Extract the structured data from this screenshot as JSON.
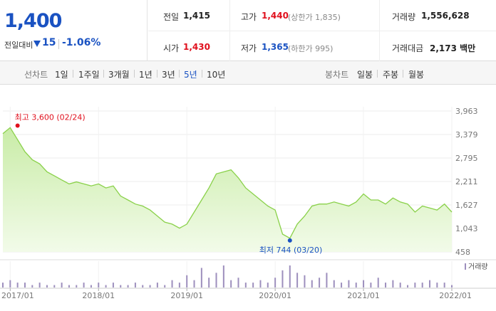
{
  "quote": {
    "price": "1,400",
    "change_label": "전일대비",
    "change_value": "15",
    "change_pct": "-1.06%",
    "prev_close_label": "전일",
    "prev_close": "1,415",
    "open_label": "시가",
    "open": "1,430",
    "high_label": "고가",
    "high": "1,440",
    "upper_limit": "(상한가 1,835)",
    "low_label": "저가",
    "low": "1,365",
    "lower_limit": "(하한가 995)",
    "volume_label": "거래량",
    "volume": "1,556,628",
    "amount_label": "거래대금",
    "amount": "2,173 백만"
  },
  "toolbar": {
    "line_label": "선차트",
    "periods": [
      "1일",
      "1주일",
      "3개월",
      "1년",
      "3년",
      "5년",
      "10년"
    ],
    "active_period": "5년",
    "candle_label": "봉차트",
    "candles": [
      "일봉",
      "주봉",
      "월봉"
    ]
  },
  "colors": {
    "up": "#e0101d",
    "down": "#1a52c2",
    "line": "#8ad14a",
    "area_top": "#c9eca7",
    "area_bottom": "#f2fbe9",
    "volume": "#9d8fbd"
  },
  "chart_data": {
    "type": "area",
    "title": "",
    "ylim": [
      458,
      3963
    ],
    "yticks": [
      "3,963",
      "3,379",
      "2,795",
      "2,211",
      "1,627",
      "1,043",
      "458"
    ],
    "xticks": [
      "2017/01",
      "2018/01",
      "2019/01",
      "2020/01",
      "2021/01",
      "2022/01"
    ],
    "x": [
      "2016/12",
      "2017/01",
      "2017/02",
      "2017/03",
      "2017/04",
      "2017/05",
      "2017/06",
      "2017/07",
      "2017/08",
      "2017/09",
      "2017/10",
      "2017/11",
      "2017/12",
      "2018/01",
      "2018/02",
      "2018/03",
      "2018/04",
      "2018/05",
      "2018/06",
      "2018/07",
      "2018/08",
      "2018/09",
      "2018/10",
      "2018/11",
      "2018/12",
      "2019/01",
      "2019/02",
      "2019/03",
      "2019/04",
      "2019/05",
      "2019/06",
      "2019/07",
      "2019/08",
      "2019/09",
      "2019/10",
      "2019/11",
      "2019/12",
      "2020/01",
      "2020/02",
      "2020/03",
      "2020/04",
      "2020/05",
      "2020/06",
      "2020/07",
      "2020/08",
      "2020/09",
      "2020/10",
      "2020/11",
      "2020/12",
      "2021/01",
      "2021/02",
      "2021/03",
      "2021/04",
      "2021/05",
      "2021/06",
      "2021/07",
      "2021/08",
      "2021/09",
      "2021/10",
      "2021/11",
      "2021/12",
      "2022/01"
    ],
    "series": [
      {
        "values": [
          3400,
          3550,
          3250,
          2950,
          2750,
          2650,
          2450,
          2350,
          2250,
          2150,
          2200,
          2150,
          2100,
          2150,
          2050,
          2100,
          1850,
          1750,
          1650,
          1600,
          1500,
          1350,
          1200,
          1150,
          1050,
          1150,
          1450,
          1750,
          2050,
          2400,
          2450,
          2500,
          2300,
          2050,
          1900,
          1750,
          1600,
          1500,
          900,
          800,
          1150,
          1350,
          1600,
          1650,
          1650,
          1700,
          1650,
          1600,
          1700,
          1900,
          1750,
          1750,
          1650,
          1800,
          1700,
          1650,
          1450,
          1600,
          1550,
          1500,
          1650,
          1450
        ]
      }
    ],
    "annotations": {
      "high": {
        "label": "최고 3,600 (02/24)",
        "x": "2017/02",
        "value": 3600
      },
      "low": {
        "label": "최저 744 (03/20)",
        "x": "2020/03",
        "value": 744
      }
    },
    "volume": {
      "label": "거래량",
      "values": [
        2,
        3,
        2,
        2,
        1,
        2,
        1,
        1,
        2,
        1,
        1,
        2,
        1,
        2,
        1,
        2,
        1,
        1,
        2,
        1,
        1,
        2,
        1,
        3,
        2,
        5,
        3,
        8,
        4,
        6,
        9,
        3,
        4,
        2,
        2,
        3,
        2,
        4,
        7,
        9,
        6,
        5,
        3,
        4,
        6,
        3,
        2,
        3,
        2,
        3,
        2,
        4,
        2,
        3,
        2,
        1,
        2,
        2,
        3,
        2,
        2,
        1
      ]
    }
  }
}
